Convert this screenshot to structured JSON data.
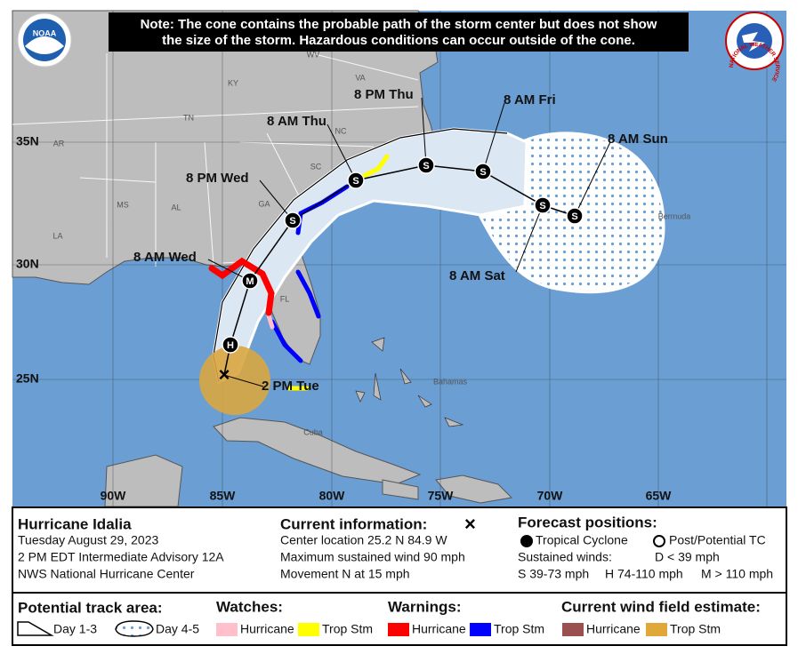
{
  "note": [
    "Note: The cone contains the probable path of the storm center but does not show",
    "the size of the storm. Hazardous conditions can occur outside of the cone."
  ],
  "logos": {
    "noaa": "NOAA",
    "nws": "NATIONAL WEATHER SERVICE"
  },
  "map_labels": {
    "states": [
      "WV",
      "KY",
      "VA",
      "TN",
      "NC",
      "SC",
      "GA",
      "AL",
      "MS",
      "AR",
      "LA",
      "FL"
    ],
    "places": [
      "Bahamas",
      "Cuba",
      "Bermuda"
    ]
  },
  "latitude_labels": [
    "35N",
    "30N",
    "25N"
  ],
  "longitude_labels": [
    "90W",
    "85W",
    "80W",
    "75W",
    "70W",
    "65W"
  ],
  "forecast": {
    "times": [
      "2 PM Tue",
      "8 AM Wed",
      "8 PM Wed",
      "8 AM Thu",
      "8 PM Thu",
      "8 AM Fri",
      "8 AM Sat",
      "8 AM Sun"
    ],
    "markers": [
      "×",
      "H",
      "M",
      "S",
      "S",
      "S",
      "S",
      "S"
    ]
  },
  "storm": {
    "name": "Hurricane Idalia",
    "date": "Tuesday August 29, 2023",
    "advisory": "2 PM EDT Intermediate Advisory 12A",
    "center": "NWS National Hurricane Center"
  },
  "current_information": {
    "title": "Current information:",
    "symbol": "×",
    "lines": [
      "Center location 25.2 N 84.9 W",
      "Maximum sustained wind 90 mph",
      "Movement N at 15 mph"
    ]
  },
  "forecast_positions": {
    "title": "Forecast positions:",
    "tropical_cyclone": "Tropical Cyclone",
    "post_tropical": "Post/Potential TC",
    "sustained_winds": "Sustained winds:",
    "d": "D < 39 mph",
    "s": "S 39-73 mph",
    "h": "H 74-110 mph",
    "m": "M > 110 mph"
  },
  "legend": {
    "potential_track_area": {
      "title": "Potential track area:",
      "items": [
        "Day 1-3",
        "Day 4-5"
      ]
    },
    "watches": {
      "title": "Watches:",
      "items": [
        {
          "label": "Hurricane",
          "color": "#ffc0cb"
        },
        {
          "label": "Trop Stm",
          "color": "#ffff00"
        }
      ]
    },
    "warnings": {
      "title": "Warnings:",
      "items": [
        {
          "label": "Hurricane",
          "color": "#ff0000"
        },
        {
          "label": "Trop Stm",
          "color": "#0000ff"
        }
      ]
    },
    "wind_field": {
      "title": "Current wind field estimate:",
      "items": [
        {
          "label": "Hurricane",
          "color": "#9b5050"
        },
        {
          "label": "Trop Stm",
          "color": "#e0a838"
        }
      ]
    }
  }
}
